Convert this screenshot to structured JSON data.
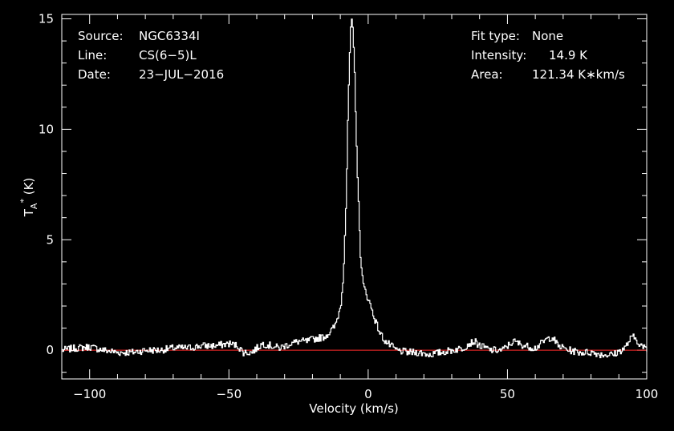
{
  "chart_data": {
    "type": "line",
    "xlabel": "Velocity (km/s)",
    "ylabel": {
      "base": "T",
      "sub": "A",
      "sup": "*",
      "unit": " (K)"
    },
    "xlim": [
      -110,
      100
    ],
    "ylim": [
      -1.3,
      15.2
    ],
    "xticks": [
      -100,
      -50,
      0,
      50,
      100
    ],
    "xtick_labels": [
      "−100",
      "−50",
      "0",
      "50",
      "100"
    ],
    "yticks": [
      0,
      5,
      10,
      15
    ],
    "ytick_labels": [
      "0",
      "5",
      "10",
      "15"
    ],
    "baseline": 0,
    "grid": false,
    "colors": {
      "background": "#000000",
      "frame": "#ffffff",
      "spectrum": "#ffffff",
      "baseline": "#ff2a2a"
    },
    "annotations": {
      "left": [
        {
          "key": "Source:",
          "value": "NGC6334I"
        },
        {
          "key": "Line:",
          "value": "CS(6−5)L"
        },
        {
          "key": "Date:",
          "value": "23−JUL−2016"
        }
      ],
      "right": [
        {
          "key": "Fit type:",
          "value": "None"
        },
        {
          "key": "Intensity:",
          "value": "14.9 K"
        },
        {
          "key": "Area:",
          "value": "121.34 K∗km/s"
        }
      ]
    },
    "series": [
      {
        "x": [
          -110,
          -105,
          -100,
          -95,
          -90,
          -85,
          -80,
          -75,
          -70,
          -65,
          -60,
          -55,
          -50,
          -47,
          -45,
          -42,
          -40,
          -38,
          -35,
          -32,
          -30,
          -28,
          -25,
          -22,
          -20,
          -18,
          -16,
          -14,
          -12,
          -10,
          -9,
          -8,
          -7.5,
          -7,
          -6.5,
          -6,
          -5.5,
          -5,
          -4,
          -3,
          -2,
          -1,
          0,
          2,
          4,
          6,
          8,
          10,
          14,
          18,
          22,
          26,
          30,
          34,
          36,
          38,
          40,
          44,
          48,
          50,
          52,
          54,
          56,
          60,
          62,
          64,
          66,
          68,
          72,
          76,
          80,
          84,
          88,
          92,
          94,
          95,
          96,
          98,
          100
        ],
        "y": [
          0.0,
          0.1,
          0.15,
          0.0,
          -0.1,
          -0.1,
          0.0,
          0.0,
          0.1,
          0.1,
          0.2,
          0.2,
          0.3,
          0.2,
          -0.1,
          -0.1,
          0.1,
          0.3,
          0.2,
          0.1,
          0.2,
          0.3,
          0.4,
          0.4,
          0.5,
          0.55,
          0.6,
          0.8,
          1.1,
          2.0,
          3.5,
          7.0,
          10.0,
          12.5,
          14.4,
          14.9,
          14.2,
          12.5,
          8.0,
          4.5,
          3.0,
          2.6,
          2.3,
          1.5,
          0.8,
          0.4,
          0.2,
          0.0,
          -0.1,
          -0.1,
          -0.2,
          -0.1,
          0.0,
          0.1,
          0.3,
          0.4,
          0.2,
          0.0,
          0.0,
          0.2,
          0.4,
          0.3,
          0.2,
          0.1,
          0.3,
          0.5,
          0.6,
          0.2,
          0.0,
          -0.1,
          -0.1,
          -0.2,
          -0.2,
          0.1,
          0.5,
          0.6,
          0.5,
          0.2,
          0.0
        ]
      }
    ]
  }
}
